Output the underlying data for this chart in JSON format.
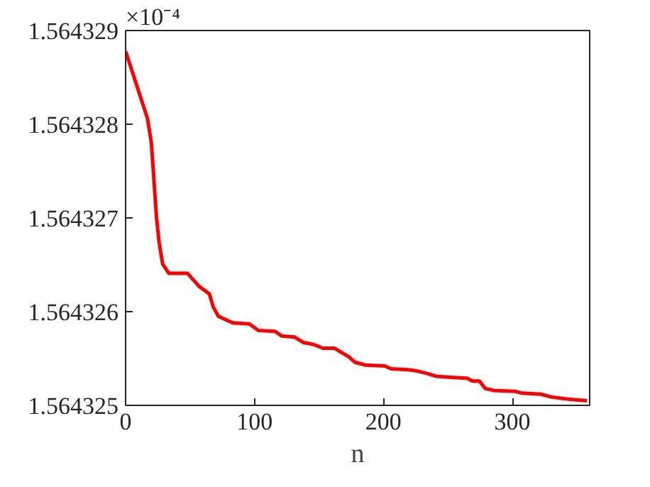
{
  "chart_data": {
    "type": "line",
    "xlabel": "n",
    "annotations": [
      "×10⁻⁴"
    ],
    "xlim": [
      0,
      360
    ],
    "xticks": [
      0,
      100,
      200,
      300
    ],
    "ylim": [
      1.564325,
      1.564329
    ],
    "yticks": [
      1.564325,
      1.564326,
      1.564327,
      1.564328,
      1.564329
    ],
    "grid": false,
    "marker": "none",
    "line_style": "solid",
    "series": [
      {
        "color": "#ff0000",
        "x": [
          0,
          17,
          20,
          24,
          26,
          28.7,
          33.5,
          48,
          57,
          65,
          68,
          72,
          83,
          96,
          103,
          116,
          121,
          131,
          138,
          146,
          153,
          162,
          168,
          173,
          178,
          186,
          201,
          206,
          219,
          225,
          234,
          241,
          252,
          265,
          269,
          274.5,
          279,
          285.5,
          302,
          307.5,
          322,
          330,
          341,
          348,
          358
        ],
        "values": [
          1.56432878,
          1.56432806,
          1.5643278,
          1.564327,
          1.56432674,
          1.56432651,
          1.56432641,
          1.56432641,
          1.56432627,
          1.56432619,
          1.56432605,
          1.56432595,
          1.56432588,
          1.56432587,
          1.5643258,
          1.56432579,
          1.56432574,
          1.56432573,
          1.56432567,
          1.56432565,
          1.56432561,
          1.56432561,
          1.56432556,
          1.56432552,
          1.56432546,
          1.56432543,
          1.56432542,
          1.56432539,
          1.56432538,
          1.56432537,
          1.56432534,
          1.56432531,
          1.5643253,
          1.56432529,
          1.56432526,
          1.56432526,
          1.56432518,
          1.56432516,
          1.56432515,
          1.56432513,
          1.56432512,
          1.56432509,
          1.56432507,
          1.56432506,
          1.56432505
        ]
      }
    ]
  }
}
